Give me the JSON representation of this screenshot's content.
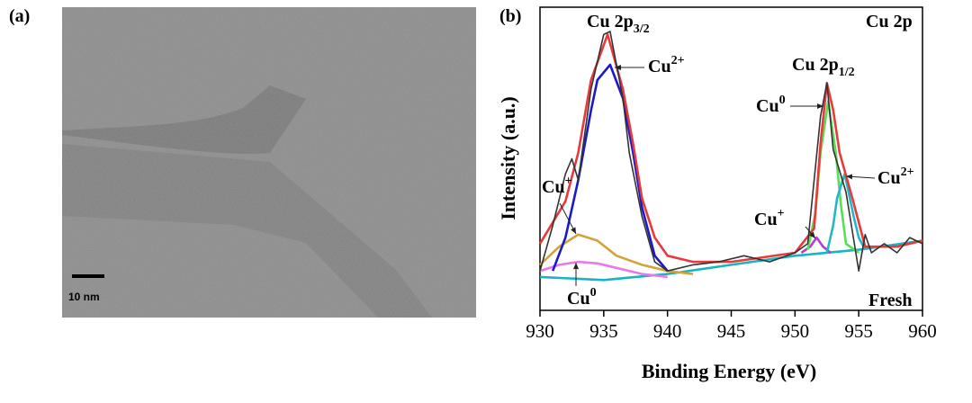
{
  "panel_a": {
    "label": "(a)",
    "scale_bar": "10 nm"
  },
  "chart_data": {
    "type": "line",
    "panel_label": "(b)",
    "x_label": "Binding Energy (eV)",
    "y_label": "Intensity (a.u.)",
    "xlim": [
      930,
      960
    ],
    "xticks": [
      930,
      935,
      940,
      945,
      950,
      955,
      960
    ],
    "ylim": [
      0,
      100
    ],
    "annotations": [
      {
        "text": "Cu 2p",
        "sub": "3/2"
      },
      {
        "text": "Cu",
        "sup": "2+"
      },
      {
        "text": "Cu 2p",
        "sub": "1/2"
      },
      {
        "text": "Cu 2p"
      },
      {
        "text": "Cu",
        "sup": "0"
      },
      {
        "text": "Cu",
        "sup": "2+"
      },
      {
        "text": "Cu",
        "sup": "+"
      },
      {
        "text": "Cu",
        "sup": "+"
      },
      {
        "text": "Cu",
        "sup": "0"
      },
      {
        "text": "Fresh"
      }
    ],
    "series": [
      {
        "color": "#17b5c4",
        "x": [
          930,
          935,
          940,
          945,
          950,
          955,
          960
        ],
        "values": [
          11,
          10,
          12,
          15,
          18,
          20,
          23
        ]
      },
      {
        "color": "#e879e8",
        "x": [
          930,
          931.5,
          933,
          934.5,
          936,
          938,
          940
        ],
        "values": [
          13,
          15,
          16,
          15.5,
          14,
          12,
          11
        ]
      },
      {
        "color": "#d4a23a",
        "x": [
          930,
          931.5,
          933,
          934.5,
          936,
          938,
          940,
          942
        ],
        "values": [
          15,
          21,
          25,
          23,
          18,
          15,
          13,
          12
        ]
      },
      {
        "color": "#1a1ac8",
        "x": [
          931,
          932,
          933,
          934,
          934.5,
          935.5,
          936.5,
          937.3,
          938,
          939,
          940
        ],
        "values": [
          13,
          24,
          43,
          66,
          76,
          81,
          70,
          52,
          34,
          18,
          13
        ]
      },
      {
        "color": "#b040d0",
        "x": [
          950.5,
          951.2,
          951.7,
          952.2,
          952.8
        ],
        "values": [
          19,
          21,
          24,
          21,
          19
        ]
      },
      {
        "color": "#55e055",
        "x": [
          951,
          951.6,
          952,
          952.6,
          953.2,
          953.6,
          954,
          955
        ],
        "values": [
          20,
          32,
          52,
          69,
          52,
          35,
          22,
          19
        ]
      },
      {
        "color": "#22b8c8",
        "x": [
          952.5,
          953,
          953.3,
          953.9,
          954.6,
          955,
          955.5
        ],
        "values": [
          19,
          28,
          37,
          45,
          31,
          24,
          20
        ]
      },
      {
        "color": "#e83a3a",
        "x": [
          930,
          932,
          933,
          934,
          935.3,
          936.5,
          937.3,
          938,
          939,
          940,
          942,
          945,
          950,
          951.5,
          952,
          952.5,
          953,
          953.5,
          954.5,
          955.5,
          958,
          960
        ],
        "values": [
          22,
          36,
          52,
          76,
          91,
          73,
          55,
          37,
          24,
          18,
          16,
          16,
          19,
          27,
          55,
          75,
          66,
          52,
          37,
          21,
          21,
          23
        ]
      },
      {
        "color": "#333333",
        "x": [
          930,
          931,
          932,
          932.5,
          933,
          934,
          935,
          935.5,
          936.5,
          937,
          938,
          939,
          940,
          942,
          944,
          946,
          948,
          950,
          951,
          952,
          952.5,
          953,
          954,
          955,
          955.5,
          956,
          957,
          958,
          959,
          960
        ],
        "values": [
          13,
          28,
          45,
          50,
          43,
          73,
          91,
          92,
          70,
          52,
          31,
          16,
          13,
          15,
          16,
          18,
          16,
          19,
          22,
          64,
          75,
          53,
          39,
          13,
          25,
          19,
          22,
          19,
          24,
          22
        ]
      }
    ]
  }
}
